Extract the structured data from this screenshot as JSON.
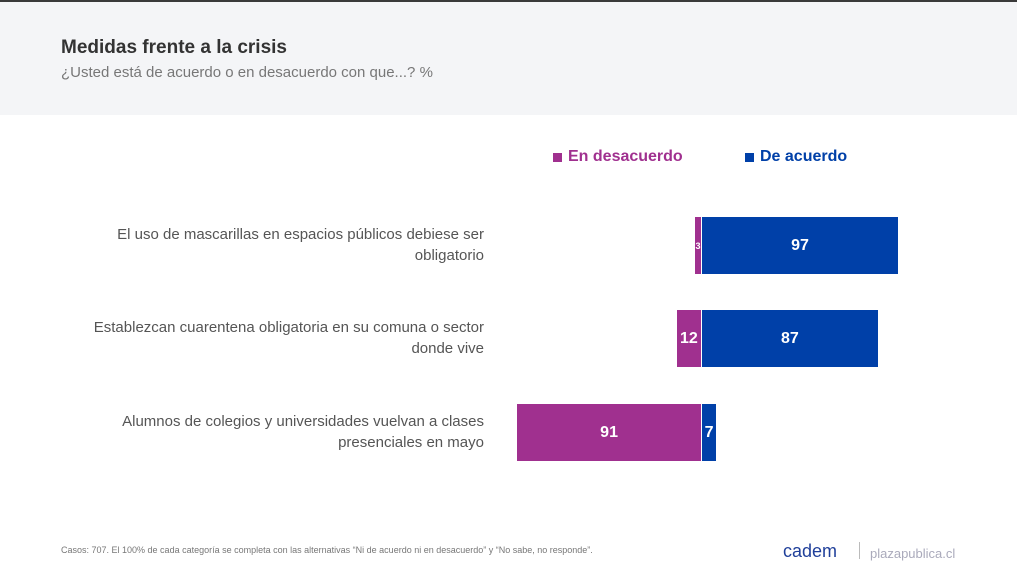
{
  "header": {
    "title": "Medidas frente a la crisis",
    "subtitle": "¿Usted está de acuerdo o en desacuerdo con que...? %"
  },
  "colors": {
    "disagree": "#a0308f",
    "agree": "#0040a8"
  },
  "chart_data": {
    "type": "bar",
    "orientation": "horizontal-diverging",
    "stacked": true,
    "title": "Medidas frente a la crisis",
    "legend": [
      "En desacuerdo",
      "De acuerdo"
    ],
    "legend_position": "top-right",
    "categories": [
      "El uso de mascarillas en espacios públicos debiese ser obligatorio",
      "Establezcan cuarentena obligatoria en su comuna o sector donde vive",
      "Alumnos de colegios y universidades vuelvan a clases presenciales en mayo"
    ],
    "series": [
      {
        "name": "En desacuerdo",
        "values": [
          3,
          12,
          91
        ]
      },
      {
        "name": "De acuerdo",
        "values": [
          97,
          87,
          7
        ]
      }
    ]
  },
  "footer": {
    "note": "Casos: 707. El 100% de cada categoría se completa con las alternativas “Ni de acuerdo ni en desacuerdo” y “No sabe, no responde”.",
    "logo": "cadem",
    "site": "plazapublica.cl"
  }
}
